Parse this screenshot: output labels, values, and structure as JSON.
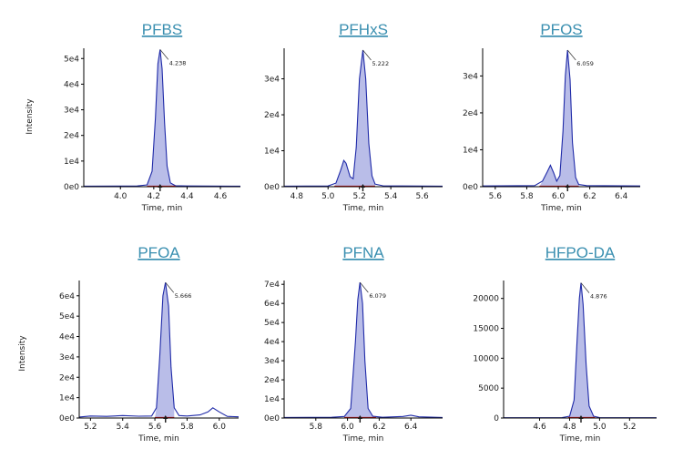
{
  "ylabel": "Intensity",
  "colors": {
    "title": "#3a8fb0",
    "trace": "#1f2aa8",
    "fill": "#b9bde8",
    "baseline": "#d01818",
    "axis": "#000000"
  },
  "chart_data": [
    {
      "type": "line",
      "title": "PFBS",
      "xlabel": "Time, min",
      "xlim": [
        3.78,
        4.72
      ],
      "ylim": [
        0,
        54000
      ],
      "xticks": [
        4.0,
        4.2,
        4.4,
        4.6
      ],
      "xtick_labels": [
        "4.0",
        "4.2",
        "4.4",
        "4.6"
      ],
      "yticks": [
        0,
        10000,
        20000,
        30000,
        40000,
        50000
      ],
      "ytick_labels": [
        "0e0",
        "1e4",
        "2e4",
        "3e4",
        "4e4",
        "5e4"
      ],
      "peak_label": "4.238",
      "peak_x": 4.238,
      "series": [
        {
          "x": [
            3.78,
            4.1,
            4.16,
            4.19,
            4.21,
            4.225,
            4.238,
            4.25,
            4.265,
            4.28,
            4.3,
            4.33,
            4.4,
            4.72
          ],
          "y": [
            200,
            300,
            700,
            6000,
            27000,
            48000,
            53500,
            46000,
            25000,
            8000,
            1500,
            400,
            300,
            200
          ]
        }
      ],
      "integration": {
        "start": 4.16,
        "end": 4.33
      }
    },
    {
      "type": "line",
      "title": "PFHxS",
      "xlabel": "Time, min",
      "xlim": [
        4.72,
        5.73
      ],
      "ylim": [
        0,
        38500
      ],
      "xticks": [
        4.8,
        5.0,
        5.2,
        5.4,
        5.6
      ],
      "xtick_labels": [
        "4.8",
        "5.0",
        "5.2",
        "5.4",
        "5.6"
      ],
      "yticks": [
        0,
        10000,
        20000,
        30000
      ],
      "ytick_labels": [
        "0e0",
        "1e4",
        "2e4",
        "3e4"
      ],
      "peak_label": "5.222",
      "peak_x": 5.222,
      "series": [
        {
          "x": [
            4.72,
            5.0,
            5.05,
            5.08,
            5.1,
            5.115,
            5.14,
            5.16,
            5.18,
            5.2,
            5.222,
            5.24,
            5.26,
            5.28,
            5.3,
            5.35,
            5.73
          ],
          "y": [
            150,
            200,
            1000,
            4500,
            7300,
            6500,
            2800,
            2200,
            11000,
            30000,
            38000,
            30000,
            12000,
            3000,
            700,
            250,
            150
          ]
        }
      ],
      "integration": {
        "start": 5.04,
        "end": 5.3
      }
    },
    {
      "type": "line",
      "title": "PFOS",
      "xlabel": "Time, min",
      "xlim": [
        5.52,
        6.52
      ],
      "ylim": [
        0,
        37500
      ],
      "xticks": [
        5.6,
        5.8,
        6.0,
        6.2,
        6.4
      ],
      "xtick_labels": [
        "5.6",
        "5.8",
        "6.0",
        "6.2",
        "6.4"
      ],
      "yticks": [
        0,
        10000,
        20000,
        30000
      ],
      "ytick_labels": [
        "0e0",
        "1e4",
        "2e4",
        "3e4"
      ],
      "peak_label": "6.059",
      "peak_x": 6.059,
      "series": [
        {
          "x": [
            5.52,
            5.85,
            5.9,
            5.93,
            5.95,
            5.97,
            5.99,
            6.01,
            6.03,
            6.045,
            6.059,
            6.075,
            6.09,
            6.11,
            6.13,
            6.18,
            6.52
          ],
          "y": [
            200,
            300,
            1500,
            4000,
            5800,
            3800,
            1500,
            3000,
            15000,
            30000,
            37000,
            29000,
            12000,
            2500,
            600,
            300,
            200
          ]
        }
      ],
      "integration": {
        "start": 5.88,
        "end": 6.13
      }
    },
    {
      "type": "line",
      "title": "PFOA",
      "xlabel": "Time, min",
      "xlim": [
        5.13,
        6.12
      ],
      "ylim": [
        0,
        67500
      ],
      "xticks": [
        5.2,
        5.4,
        5.6,
        5.8,
        6.0
      ],
      "xtick_labels": [
        "5.2",
        "5.4",
        "5.6",
        "5.8",
        "6.0"
      ],
      "yticks": [
        0,
        10000,
        20000,
        30000,
        40000,
        50000,
        60000
      ],
      "ytick_labels": [
        "0e0",
        "1e4",
        "2e4",
        "3e4",
        "4e4",
        "5e4",
        "6e4"
      ],
      "peak_label": "5.666",
      "peak_x": 5.666,
      "series": [
        {
          "x": [
            5.13,
            5.2,
            5.3,
            5.4,
            5.5,
            5.58,
            5.61,
            5.63,
            5.65,
            5.666,
            5.685,
            5.7,
            5.72,
            5.75,
            5.8,
            5.88,
            5.93,
            5.96,
            6.0,
            6.05,
            6.12
          ],
          "y": [
            500,
            1000,
            800,
            1200,
            900,
            1000,
            5000,
            30000,
            60000,
            66500,
            55000,
            25000,
            5000,
            1200,
            1000,
            1500,
            3000,
            5000,
            3000,
            800,
            600
          ]
        }
      ],
      "integration": {
        "start": 5.6,
        "end": 5.72
      }
    },
    {
      "type": "line",
      "title": "PFNA",
      "xlabel": "Time, min",
      "xlim": [
        5.6,
        6.6
      ],
      "ylim": [
        0,
        72000
      ],
      "xticks": [
        5.8,
        6.0,
        6.2,
        6.4
      ],
      "xtick_labels": [
        "5.8",
        "6.0",
        "6.2",
        "6.4"
      ],
      "yticks": [
        0,
        10000,
        20000,
        30000,
        40000,
        50000,
        60000,
        70000
      ],
      "ytick_labels": [
        "0e0",
        "1e4",
        "2e4",
        "3e4",
        "4e4",
        "5e4",
        "6e4",
        "7e4"
      ],
      "peak_label": "6.079",
      "peak_x": 6.079,
      "series": [
        {
          "x": [
            5.6,
            5.9,
            5.98,
            6.02,
            6.05,
            6.065,
            6.079,
            6.095,
            6.11,
            6.13,
            6.16,
            6.22,
            6.35,
            6.4,
            6.45,
            6.6
          ],
          "y": [
            300,
            400,
            800,
            5000,
            40000,
            62000,
            71000,
            60000,
            30000,
            5000,
            900,
            400,
            800,
            1500,
            600,
            300
          ]
        }
      ],
      "integration": {
        "start": 5.98,
        "end": 6.18
      }
    },
    {
      "type": "line",
      "title": "HFPO-DA",
      "xlabel": "Time, min",
      "xlim": [
        4.36,
        5.38
      ],
      "ylim": [
        0,
        23000
      ],
      "xticks": [
        4.6,
        4.8,
        5.0,
        5.2
      ],
      "xtick_labels": [
        "4.6",
        "4.8",
        "5.0",
        "5.2"
      ],
      "yticks": [
        0,
        5000,
        10000,
        15000,
        20000
      ],
      "ytick_labels": [
        "0",
        "5000",
        "10000",
        "15000",
        "20000"
      ],
      "peak_label": "4.876",
      "peak_x": 4.876,
      "series": [
        {
          "x": [
            4.36,
            4.75,
            4.8,
            4.83,
            4.85,
            4.865,
            4.876,
            4.89,
            4.91,
            4.93,
            4.96,
            5.0,
            5.38
          ],
          "y": [
            50,
            80,
            300,
            3000,
            13000,
            20000,
            22600,
            19000,
            9000,
            2000,
            300,
            80,
            50
          ]
        }
      ],
      "integration": {
        "start": 4.79,
        "end": 4.97
      }
    }
  ]
}
